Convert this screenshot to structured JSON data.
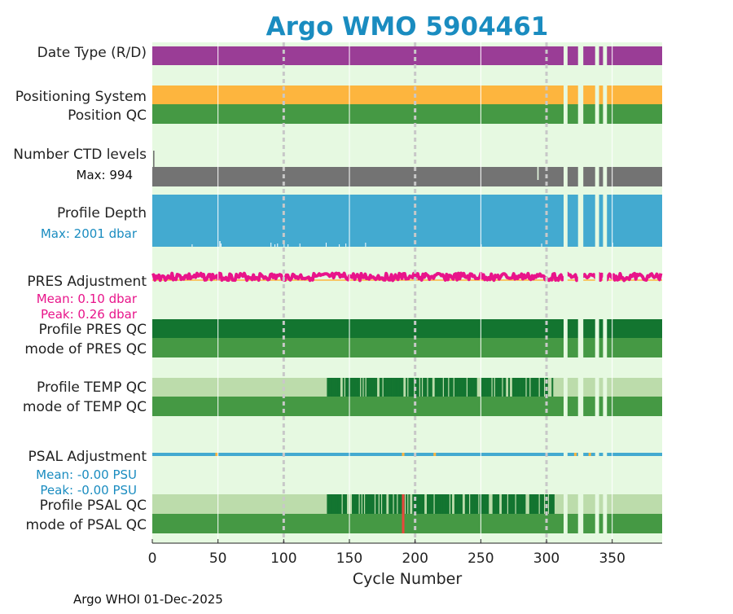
{
  "chart_data": {
    "type": "bar",
    "title": "Argo WMO 5904461",
    "xlabel": "Cycle Number",
    "xlim": [
      0,
      388
    ],
    "x_ticks": [
      0,
      50,
      100,
      150,
      200,
      250,
      300,
      350
    ],
    "x_tick_labels": [
      "0",
      "50",
      "100",
      "150",
      "200",
      "250",
      "300",
      "350"
    ],
    "dashed_grid_x": [
      100,
      200,
      300
    ],
    "solid_grid_x": [
      50,
      150,
      250,
      350
    ],
    "footer": "Argo WHOI 01-Dec-2025",
    "gap_cycles": [
      [
        313,
        316
      ],
      [
        324,
        328
      ],
      [
        337,
        340
      ],
      [
        343,
        346
      ]
    ],
    "panels": [
      {
        "key": "date_type",
        "label": "Date Type (R/D)",
        "color": "#9a3d96"
      },
      {
        "key": "positioning_system",
        "label": "Positioning System",
        "color": "#fdb53e"
      },
      {
        "key": "position_qc",
        "label": "Position QC",
        "color": "#459944"
      },
      {
        "key": "n_levels",
        "label": "Number CTD levels",
        "sublabel": "Max: 994",
        "max": 994,
        "color": "#737373"
      },
      {
        "key": "profile_depth",
        "label": "Profile Depth",
        "sublabel": "Max: 2001 dbar",
        "max_dbar": 2001,
        "color": "#43aad0"
      },
      {
        "key": "pres_adjustment",
        "label": "PRES Adjustment",
        "sublabel_mean": "Mean: 0.10 dbar",
        "sublabel_peak": "Peak: 0.26 dbar",
        "mean": 0.1,
        "peak": 0.26,
        "color": "#e8148a"
      },
      {
        "key": "profile_pres_qc",
        "label": "Profile PRES QC",
        "color": "#137530"
      },
      {
        "key": "mode_pres_qc",
        "label": "mode of PRES QC",
        "color": "#459944"
      },
      {
        "key": "profile_temp_qc",
        "label": "Profile TEMP QC",
        "color": "#bcdcab",
        "flag_color": "#137530",
        "flag_range": [
          133,
          305
        ]
      },
      {
        "key": "mode_temp_qc",
        "label": "mode of TEMP QC",
        "color": "#459944"
      },
      {
        "key": "psal_adjustment",
        "label": "PSAL Adjustment",
        "sublabel_mean": "Mean: -0.00 PSU",
        "sublabel_peak": "Peak: -0.00 PSU",
        "mean": -0.0,
        "peak": -0.0,
        "color": "#43aad0"
      },
      {
        "key": "profile_psal_qc",
        "label": "Profile PSAL QC",
        "color": "#bcdcab",
        "flag_color": "#137530",
        "flag_range": [
          133,
          305
        ],
        "bad_cycle": 190,
        "bad_color": "#e8473c"
      },
      {
        "key": "mode_psal_qc",
        "label": "mode of PSAL QC",
        "color": "#459944"
      }
    ],
    "colors": {
      "title": "#1a8cc0",
      "background": "#e6f9e1",
      "pres_label": "#e8148a",
      "psal_label": "#1a8cc0",
      "profile_depth_label": "#1a8cc0",
      "ref_line": "#fdb53e"
    }
  }
}
